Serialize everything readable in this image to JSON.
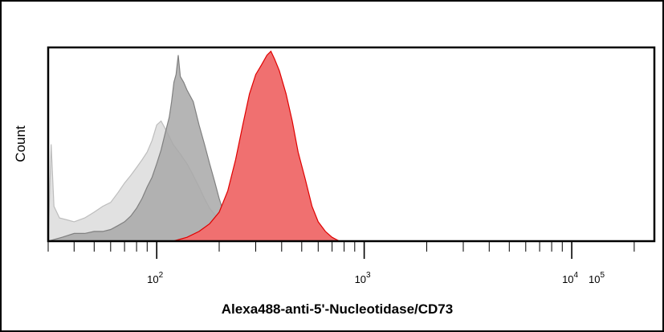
{
  "chart_data": {
    "type": "area",
    "xlabel": "Alexa488-anti-5'-Nucleotidase/CD73",
    "ylabel": "Count",
    "x_scale": "log",
    "xlim": [
      30,
      25000
    ],
    "ylim": [
      0,
      100
    ],
    "x_ticks": [
      {
        "value": 100,
        "base": "10",
        "exp": "2"
      },
      {
        "value": 1000,
        "base": "10",
        "exp": "3"
      },
      {
        "value": 10000,
        "base": "10",
        "exp": "4"
      },
      {
        "value": 100000,
        "base": "10",
        "exp": "5"
      }
    ],
    "grid": false,
    "series": [
      {
        "fill": "#dcdcdc",
        "stroke": "#bdbdbd",
        "points": [
          [
            30,
            0
          ],
          [
            31,
            50
          ],
          [
            32,
            18
          ],
          [
            34,
            12
          ],
          [
            37,
            11
          ],
          [
            40,
            10
          ],
          [
            45,
            12
          ],
          [
            50,
            15
          ],
          [
            55,
            18
          ],
          [
            60,
            20
          ],
          [
            65,
            25
          ],
          [
            70,
            30
          ],
          [
            75,
            34
          ],
          [
            80,
            38
          ],
          [
            85,
            42
          ],
          [
            90,
            46
          ],
          [
            95,
            52
          ],
          [
            100,
            60
          ],
          [
            105,
            62
          ],
          [
            110,
            58
          ],
          [
            115,
            54
          ],
          [
            120,
            50
          ],
          [
            130,
            45
          ],
          [
            140,
            40
          ],
          [
            150,
            34
          ],
          [
            160,
            28
          ],
          [
            170,
            22
          ],
          [
            180,
            17
          ],
          [
            200,
            11
          ],
          [
            220,
            6
          ],
          [
            240,
            2
          ],
          [
            260,
            0
          ]
        ]
      },
      {
        "fill": "#a8a8a8",
        "stroke": "#808080",
        "points": [
          [
            30,
            0
          ],
          [
            35,
            2
          ],
          [
            40,
            4
          ],
          [
            45,
            4
          ],
          [
            50,
            5
          ],
          [
            55,
            5
          ],
          [
            60,
            6
          ],
          [
            65,
            8
          ],
          [
            70,
            10
          ],
          [
            75,
            13
          ],
          [
            80,
            17
          ],
          [
            85,
            22
          ],
          [
            90,
            28
          ],
          [
            95,
            33
          ],
          [
            100,
            40
          ],
          [
            105,
            47
          ],
          [
            110,
            56
          ],
          [
            115,
            64
          ],
          [
            118,
            72
          ],
          [
            121,
            82
          ],
          [
            124,
            86
          ],
          [
            127,
            96
          ],
          [
            130,
            85
          ],
          [
            135,
            82
          ],
          [
            140,
            78
          ],
          [
            150,
            72
          ],
          [
            160,
            60
          ],
          [
            170,
            50
          ],
          [
            180,
            40
          ],
          [
            190,
            31
          ],
          [
            200,
            22
          ],
          [
            210,
            15
          ],
          [
            220,
            10
          ],
          [
            240,
            4
          ],
          [
            260,
            0
          ]
        ]
      },
      {
        "fill": "#f07070",
        "stroke": "#e00000",
        "points": [
          [
            120,
            0
          ],
          [
            140,
            2
          ],
          [
            160,
            5
          ],
          [
            180,
            9
          ],
          [
            200,
            15
          ],
          [
            220,
            26
          ],
          [
            240,
            42
          ],
          [
            260,
            60
          ],
          [
            280,
            76
          ],
          [
            300,
            86
          ],
          [
            320,
            91
          ],
          [
            340,
            96
          ],
          [
            355,
            98
          ],
          [
            370,
            94
          ],
          [
            390,
            88
          ],
          [
            420,
            76
          ],
          [
            450,
            62
          ],
          [
            480,
            46
          ],
          [
            520,
            32
          ],
          [
            560,
            18
          ],
          [
            600,
            10
          ],
          [
            650,
            5
          ],
          [
            700,
            2
          ],
          [
            760,
            0
          ]
        ]
      }
    ]
  }
}
